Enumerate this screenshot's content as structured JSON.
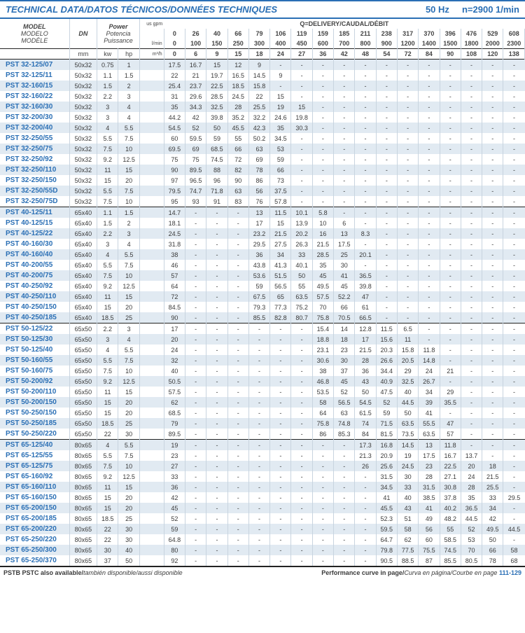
{
  "header": {
    "title": "TECHNICAL DATA/DATOS TÉCNICOS/DONNÉES TECHNIQUES",
    "hz": "50 Hz",
    "rpm": "n=2900 1/min"
  },
  "table_head": {
    "model": "MODEL",
    "modelo": "MODELO",
    "modele": "MODÈLE",
    "dn": "DN",
    "dn_unit": "mm",
    "power": "Power",
    "potencia": "Potencia",
    "puissance": "Puissance",
    "kw": "kw",
    "hp": "hp",
    "units_gpm": "gpm",
    "units_lmin": "l/min",
    "units_m3h": "m³/h",
    "q_label": "Q=DELIVERY/CAUDAL/DÉBIT",
    "h_label": "H=Head/Altura/Hauteur(m)",
    "row_gpm": [
      "0",
      "26",
      "40",
      "66",
      "79",
      "106",
      "119",
      "159",
      "185",
      "211",
      "238",
      "317",
      "370",
      "396",
      "476",
      "529",
      "608"
    ],
    "row_lmin": [
      "0",
      "100",
      "150",
      "250",
      "300",
      "400",
      "450",
      "600",
      "700",
      "800",
      "900",
      "1200",
      "1400",
      "1500",
      "1800",
      "2000",
      "2300"
    ],
    "row_m3h": [
      "0",
      "6",
      "9",
      "15",
      "18",
      "24",
      "27",
      "36",
      "42",
      "48",
      "54",
      "72",
      "84",
      "90",
      "108",
      "120",
      "138"
    ]
  },
  "rows": [
    {
      "m": "PST 32-125/07",
      "dn": "50x32",
      "kw": "0.75",
      "hp": "1",
      "v": [
        "17.5",
        "16.7",
        "15",
        "12",
        "9",
        "-",
        "-",
        "-",
        "-",
        "-",
        "-",
        "-",
        "-",
        "-",
        "-",
        "-",
        "-"
      ]
    },
    {
      "m": "PST 32-125/11",
      "dn": "50x32",
      "kw": "1.1",
      "hp": "1.5",
      "v": [
        "22",
        "21",
        "19.7",
        "16.5",
        "14.5",
        "9",
        "-",
        "-",
        "-",
        "-",
        "-",
        "-",
        "-",
        "-",
        "-",
        "-",
        "-"
      ]
    },
    {
      "m": "PST 32-160/15",
      "dn": "50x32",
      "kw": "1.5",
      "hp": "2",
      "v": [
        "25.4",
        "23.7",
        "22.5",
        "18.5",
        "15.8",
        "-",
        "-",
        "-",
        "-",
        "-",
        "-",
        "-",
        "-",
        "-",
        "-",
        "-",
        "-"
      ]
    },
    {
      "m": "PST 32-160/22",
      "dn": "50x32",
      "kw": "2.2",
      "hp": "3",
      "v": [
        "31",
        "29.6",
        "28.5",
        "24.5",
        "22",
        "15",
        "-",
        "-",
        "-",
        "-",
        "-",
        "-",
        "-",
        "-",
        "-",
        "-",
        "-"
      ]
    },
    {
      "m": "PST 32-160/30",
      "dn": "50x32",
      "kw": "3",
      "hp": "4",
      "v": [
        "35",
        "34.3",
        "32.5",
        "28",
        "25.5",
        "19",
        "15",
        "-",
        "-",
        "-",
        "-",
        "-",
        "-",
        "-",
        "-",
        "-",
        "-"
      ]
    },
    {
      "m": "PST 32-200/30",
      "dn": "50x32",
      "kw": "3",
      "hp": "4",
      "v": [
        "44.2",
        "42",
        "39.8",
        "35.2",
        "32.2",
        "24.6",
        "19.8",
        "-",
        "-",
        "-",
        "-",
        "-",
        "-",
        "-",
        "-",
        "-",
        "-"
      ]
    },
    {
      "m": "PST 32-200/40",
      "dn": "50x32",
      "kw": "4",
      "hp": "5.5",
      "v": [
        "54.5",
        "52",
        "50",
        "45.5",
        "42.3",
        "35",
        "30.3",
        "-",
        "-",
        "-",
        "-",
        "-",
        "-",
        "-",
        "-",
        "-",
        "-"
      ]
    },
    {
      "m": "PST 32-250/55",
      "dn": "50x32",
      "kw": "5.5",
      "hp": "7.5",
      "v": [
        "60",
        "59.5",
        "59",
        "55",
        "50.2",
        "34.5",
        "-",
        "-",
        "-",
        "-",
        "-",
        "-",
        "-",
        "-",
        "-",
        "-",
        "-"
      ]
    },
    {
      "m": "PST 32-250/75",
      "dn": "50x32",
      "kw": "7.5",
      "hp": "10",
      "v": [
        "69.5",
        "69",
        "68.5",
        "66",
        "63",
        "53",
        "-",
        "-",
        "-",
        "-",
        "-",
        "-",
        "-",
        "-",
        "-",
        "-",
        "-"
      ]
    },
    {
      "m": "PST 32-250/92",
      "dn": "50x32",
      "kw": "9.2",
      "hp": "12.5",
      "v": [
        "75",
        "75",
        "74.5",
        "72",
        "69",
        "59",
        "-",
        "-",
        "-",
        "-",
        "-",
        "-",
        "-",
        "-",
        "-",
        "-",
        "-"
      ]
    },
    {
      "m": "PST 32-250/110",
      "dn": "50x32",
      "kw": "11",
      "hp": "15",
      "v": [
        "90",
        "89.5",
        "88",
        "82",
        "78",
        "66",
        "-",
        "-",
        "-",
        "-",
        "-",
        "-",
        "-",
        "-",
        "-",
        "-",
        "-"
      ]
    },
    {
      "m": "PST 32-250/150",
      "dn": "50x32",
      "kw": "15",
      "hp": "20",
      "v": [
        "97",
        "96.5",
        "96",
        "90",
        "86",
        "73",
        "-",
        "-",
        "-",
        "-",
        "-",
        "-",
        "-",
        "-",
        "-",
        "-",
        "-"
      ]
    },
    {
      "m": "PST 32-250/55D",
      "dn": "50x32",
      "kw": "5.5",
      "hp": "7.5",
      "v": [
        "79.5",
        "74.7",
        "71.8",
        "63",
        "56",
        "37.5",
        "-",
        "-",
        "-",
        "-",
        "-",
        "-",
        "-",
        "-",
        "-",
        "-",
        "-"
      ]
    },
    {
      "m": "PST 32-250/75D",
      "dn": "50x32",
      "kw": "7.5",
      "hp": "10",
      "v": [
        "95",
        "93",
        "91",
        "83",
        "76",
        "57.8",
        "-",
        "-",
        "-",
        "-",
        "-",
        "-",
        "-",
        "-",
        "-",
        "-",
        "-"
      ]
    },
    {
      "m": "PST 40-125/11",
      "dn": "65x40",
      "kw": "1.1",
      "hp": "1.5",
      "v": [
        "14.7",
        "-",
        "-",
        "-",
        "13",
        "11.5",
        "10.1",
        "5.8",
        "-",
        "-",
        "-",
        "-",
        "-",
        "-",
        "-",
        "-",
        "-"
      ]
    },
    {
      "m": "PST 40-125/15",
      "dn": "65x40",
      "kw": "1.5",
      "hp": "2",
      "v": [
        "18.1",
        "-",
        "-",
        "-",
        "17",
        "15",
        "13.9",
        "10",
        "6",
        "-",
        "-",
        "-",
        "-",
        "-",
        "-",
        "-",
        "-"
      ]
    },
    {
      "m": "PST 40-125/22",
      "dn": "65x40",
      "kw": "2.2",
      "hp": "3",
      "v": [
        "24.5",
        "-",
        "-",
        "-",
        "23.2",
        "21.5",
        "20.2",
        "16",
        "13",
        "8.3",
        "-",
        "-",
        "-",
        "-",
        "-",
        "-",
        "-"
      ]
    },
    {
      "m": "PST 40-160/30",
      "dn": "65x40",
      "kw": "3",
      "hp": "4",
      "v": [
        "31.8",
        "-",
        "-",
        "-",
        "29.5",
        "27.5",
        "26.3",
        "21.5",
        "17.5",
        "-",
        "-",
        "-",
        "-",
        "-",
        "-",
        "-",
        "-"
      ]
    },
    {
      "m": "PST 40-160/40",
      "dn": "65x40",
      "kw": "4",
      "hp": "5.5",
      "v": [
        "38",
        "-",
        "-",
        "-",
        "36",
        "34",
        "33",
        "28.5",
        "25",
        "20.1",
        "-",
        "-",
        "-",
        "-",
        "-",
        "-",
        "-"
      ]
    },
    {
      "m": "PST 40-200/55",
      "dn": "65x40",
      "kw": "5.5",
      "hp": "7.5",
      "v": [
        "46",
        "-",
        "-",
        "-",
        "43.8",
        "41.3",
        "40.1",
        "35",
        "30",
        "-",
        "-",
        "-",
        "-",
        "-",
        "-",
        "-",
        "-"
      ]
    },
    {
      "m": "PST 40-200/75",
      "dn": "65x40",
      "kw": "7.5",
      "hp": "10",
      "v": [
        "57",
        "-",
        "-",
        "-",
        "53.6",
        "51.5",
        "50",
        "45",
        "41",
        "36.5",
        "-",
        "-",
        "-",
        "-",
        "-",
        "-",
        "-"
      ]
    },
    {
      "m": "PST 40-250/92",
      "dn": "65x40",
      "kw": "9.2",
      "hp": "12.5",
      "v": [
        "64",
        "-",
        "-",
        "-",
        "59",
        "56.5",
        "55",
        "49.5",
        "45",
        "39.8",
        "-",
        "-",
        "-",
        "-",
        "-",
        "-",
        "-"
      ]
    },
    {
      "m": "PST 40-250/110",
      "dn": "65x40",
      "kw": "11",
      "hp": "15",
      "v": [
        "72",
        "-",
        "-",
        "-",
        "67.5",
        "65",
        "63.5",
        "57.5",
        "52.2",
        "47",
        "-",
        "-",
        "-",
        "-",
        "-",
        "-",
        "-"
      ]
    },
    {
      "m": "PST 40-250/150",
      "dn": "65x40",
      "kw": "15",
      "hp": "20",
      "v": [
        "84.5",
        "-",
        "-",
        "-",
        "79.3",
        "77.3",
        "75.2",
        "70",
        "66",
        "61",
        "-",
        "-",
        "-",
        "-",
        "-",
        "-",
        "-"
      ]
    },
    {
      "m": "PST 40-250/185",
      "dn": "65x40",
      "kw": "18.5",
      "hp": "25",
      "v": [
        "90",
        "-",
        "-",
        "-",
        "85.5",
        "82.8",
        "80.7",
        "75.8",
        "70.5",
        "66.5",
        "-",
        "-",
        "-",
        "-",
        "-",
        "-",
        "-"
      ]
    },
    {
      "m": "PST 50-125/22",
      "dn": "65x50",
      "kw": "2.2",
      "hp": "3",
      "v": [
        "17",
        "-",
        "-",
        "-",
        "-",
        "-",
        "-",
        "15.4",
        "14",
        "12.8",
        "11.5",
        "6.5",
        "-",
        "-",
        "-",
        "-",
        "-"
      ]
    },
    {
      "m": "PST 50-125/30",
      "dn": "65x50",
      "kw": "3",
      "hp": "4",
      "v": [
        "20",
        "-",
        "-",
        "-",
        "-",
        "-",
        "-",
        "18.8",
        "18",
        "17",
        "15.6",
        "11",
        "-",
        "-",
        "-",
        "-",
        "-"
      ]
    },
    {
      "m": "PST 50-125/40",
      "dn": "65x50",
      "kw": "4",
      "hp": "5.5",
      "v": [
        "24",
        "-",
        "-",
        "-",
        "-",
        "-",
        "-",
        "23.1",
        "23",
        "21.5",
        "20.3",
        "15.8",
        "11.8",
        "-",
        "-",
        "-",
        "-"
      ]
    },
    {
      "m": "PST 50-160/55",
      "dn": "65x50",
      "kw": "5.5",
      "hp": "7.5",
      "v": [
        "32",
        "-",
        "-",
        "-",
        "-",
        "-",
        "-",
        "30.6",
        "30",
        "28",
        "26.6",
        "20.5",
        "14.8",
        "-",
        "-",
        "-",
        "-"
      ]
    },
    {
      "m": "PST 50-160/75",
      "dn": "65x50",
      "kw": "7.5",
      "hp": "10",
      "v": [
        "40",
        "-",
        "-",
        "-",
        "-",
        "-",
        "-",
        "38",
        "37",
        "36",
        "34.4",
        "29",
        "24",
        "21",
        "-",
        "-",
        "-"
      ]
    },
    {
      "m": "PST 50-200/92",
      "dn": "65x50",
      "kw": "9.2",
      "hp": "12.5",
      "v": [
        "50.5",
        "-",
        "-",
        "-",
        "-",
        "-",
        "-",
        "46.8",
        "45",
        "43",
        "40.9",
        "32.5",
        "26.7",
        "-",
        "-",
        "-",
        "-"
      ]
    },
    {
      "m": "PST 50-200/110",
      "dn": "65x50",
      "kw": "11",
      "hp": "15",
      "v": [
        "57.5",
        "-",
        "-",
        "-",
        "-",
        "-",
        "-",
        "53.5",
        "52",
        "50",
        "47.5",
        "40",
        "34",
        "29",
        "-",
        "-",
        "-"
      ]
    },
    {
      "m": "PST 50-200/150",
      "dn": "65x50",
      "kw": "15",
      "hp": "20",
      "v": [
        "62",
        "-",
        "-",
        "-",
        "-",
        "-",
        "-",
        "58",
        "56.5",
        "54.5",
        "52",
        "44.5",
        "39",
        "35.5",
        "-",
        "-",
        "-"
      ]
    },
    {
      "m": "PST 50-250/150",
      "dn": "65x50",
      "kw": "15",
      "hp": "20",
      "v": [
        "68.5",
        "-",
        "-",
        "-",
        "-",
        "-",
        "-",
        "64",
        "63",
        "61.5",
        "59",
        "50",
        "41",
        "-",
        "-",
        "-",
        "-"
      ]
    },
    {
      "m": "PST 50-250/185",
      "dn": "65x50",
      "kw": "18.5",
      "hp": "25",
      "v": [
        "79",
        "-",
        "-",
        "-",
        "-",
        "-",
        "-",
        "75.8",
        "74.8",
        "74",
        "71.5",
        "63.5",
        "55.5",
        "47",
        "-",
        "-",
        "-"
      ]
    },
    {
      "m": "PST 50-250/220",
      "dn": "65x50",
      "kw": "22",
      "hp": "30",
      "v": [
        "89.5",
        "-",
        "-",
        "-",
        "-",
        "-",
        "-",
        "86",
        "85.3",
        "84",
        "81.5",
        "73.5",
        "63.5",
        "57",
        "-",
        "-",
        "-"
      ]
    },
    {
      "m": "PST 65-125/40",
      "dn": "80x65",
      "kw": "4",
      "hp": "5.5",
      "v": [
        "19",
        "-",
        "-",
        "-",
        "-",
        "-",
        "-",
        "-",
        "-",
        "17.3",
        "16.8",
        "14.5",
        "13",
        "11.8",
        "-",
        "-",
        "-"
      ]
    },
    {
      "m": "PST 65-125/55",
      "dn": "80x65",
      "kw": "5.5",
      "hp": "7.5",
      "v": [
        "23",
        "-",
        "-",
        "-",
        "-",
        "-",
        "-",
        "-",
        "-",
        "21.3",
        "20.9",
        "19",
        "17.5",
        "16.7",
        "13.7",
        "-",
        "-"
      ]
    },
    {
      "m": "PST 65-125/75",
      "dn": "80x65",
      "kw": "7.5",
      "hp": "10",
      "v": [
        "27",
        "-",
        "-",
        "-",
        "-",
        "-",
        "-",
        "-",
        "-",
        "26",
        "25.6",
        "24.5",
        "23",
        "22.5",
        "20",
        "18",
        "-"
      ]
    },
    {
      "m": "PST 65-160/92",
      "dn": "80x65",
      "kw": "9.2",
      "hp": "12.5",
      "v": [
        "33",
        "-",
        "-",
        "-",
        "-",
        "-",
        "-",
        "-",
        "-",
        "-",
        "31.5",
        "30",
        "28",
        "27.1",
        "24",
        "21.5",
        "-"
      ]
    },
    {
      "m": "PST 65-160/110",
      "dn": "80x65",
      "kw": "11",
      "hp": "15",
      "v": [
        "36",
        "-",
        "-",
        "-",
        "-",
        "-",
        "-",
        "-",
        "-",
        "-",
        "34.5",
        "33",
        "31.5",
        "30.8",
        "28",
        "25.5",
        "-"
      ]
    },
    {
      "m": "PST 65-160/150",
      "dn": "80x65",
      "kw": "15",
      "hp": "20",
      "v": [
        "42",
        "-",
        "-",
        "-",
        "-",
        "-",
        "-",
        "-",
        "-",
        "-",
        "41",
        "40",
        "38.5",
        "37.8",
        "35",
        "33",
        "29.5"
      ]
    },
    {
      "m": "PST 65-200/150",
      "dn": "80x65",
      "kw": "15",
      "hp": "20",
      "v": [
        "45",
        "-",
        "-",
        "-",
        "-",
        "-",
        "-",
        "-",
        "-",
        "-",
        "45.5",
        "43",
        "41",
        "40.2",
        "36.5",
        "34",
        "-"
      ]
    },
    {
      "m": "PST 65-200/185",
      "dn": "80x65",
      "kw": "18.5",
      "hp": "25",
      "v": [
        "52",
        "-",
        "-",
        "-",
        "-",
        "-",
        "-",
        "-",
        "-",
        "-",
        "52.3",
        "51",
        "49",
        "48.2",
        "44.5",
        "42",
        "-"
      ]
    },
    {
      "m": "PST 65-200/220",
      "dn": "80x65",
      "kw": "22",
      "hp": "30",
      "v": [
        "59",
        "-",
        "-",
        "-",
        "-",
        "-",
        "-",
        "-",
        "-",
        "-",
        "59.5",
        "58",
        "56",
        "55",
        "52",
        "49.5",
        "44.5"
      ]
    },
    {
      "m": "PST 65-250/220",
      "dn": "80x65",
      "kw": "22",
      "hp": "30",
      "v": [
        "64.8",
        "-",
        "-",
        "-",
        "-",
        "-",
        "-",
        "-",
        "-",
        "-",
        "64.7",
        "62",
        "60",
        "58.5",
        "53",
        "50",
        "-"
      ]
    },
    {
      "m": "PST 65-250/300",
      "dn": "80x65",
      "kw": "30",
      "hp": "40",
      "v": [
        "80",
        "-",
        "-",
        "-",
        "-",
        "-",
        "-",
        "-",
        "-",
        "-",
        "79.8",
        "77.5",
        "75.5",
        "74.5",
        "70",
        "66",
        "58"
      ]
    },
    {
      "m": "PST 65-250/370",
      "dn": "80x65",
      "kw": "37",
      "hp": "50",
      "v": [
        "92",
        "-",
        "-",
        "-",
        "-",
        "-",
        "-",
        "-",
        "-",
        "-",
        "90.5",
        "88.5",
        "87",
        "85.5",
        "80.5",
        "78",
        "68"
      ]
    }
  ],
  "sections_start": [
    0,
    14,
    25,
    36
  ],
  "footer": {
    "left_bold": "PSTB PSTC also available/",
    "left_ital": "también disponible/aussi disponible",
    "right_bold": "Performance curve in page/",
    "right_ital": "Curva en página/Courbe en page ",
    "right_pages": "111-129"
  }
}
